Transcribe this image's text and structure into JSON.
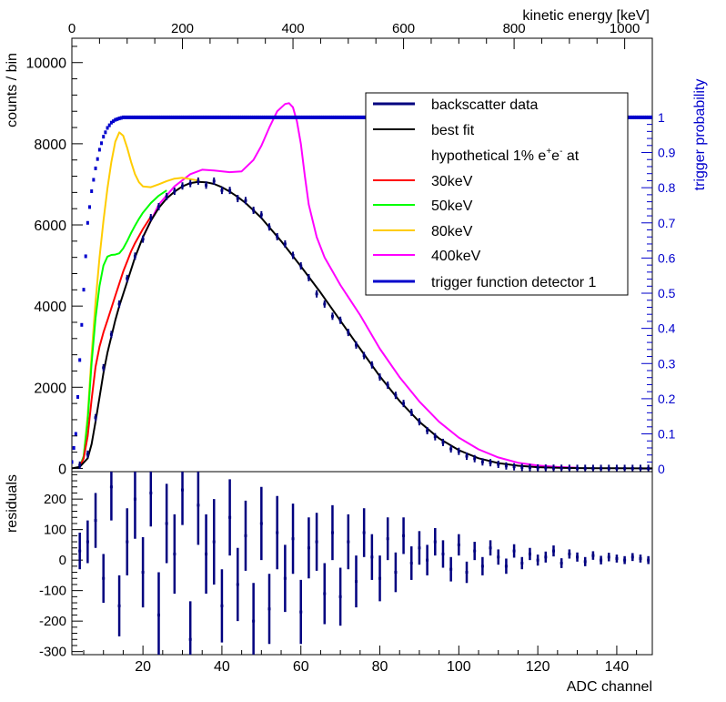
{
  "colors": {
    "data": "#00007f",
    "fit": "#000000",
    "e30": "#ff0000",
    "e50": "#00ff00",
    "e80": "#ffcc00",
    "e400": "#ff00ff",
    "trigger": "#0000cc"
  },
  "chart_data": [
    {
      "type": "scatter",
      "panel": "main",
      "title": "",
      "xlabel": "ADC channel",
      "ylabel": "counts / bin",
      "xlim": [
        2,
        149
      ],
      "ylim": [
        -80,
        10600
      ],
      "yticks": [
        0,
        2000,
        4000,
        6000,
        8000,
        10000
      ],
      "top_axis": {
        "label": "kinetic energy [keV]",
        "range": [
          0,
          1050
        ],
        "ticks": [
          0,
          200,
          400,
          600,
          800,
          1000
        ]
      },
      "right_axis": {
        "label": "trigger probability",
        "range": [
          -0.0074,
          1.225
        ],
        "ticks": [
          0,
          0.1,
          0.2,
          0.3,
          0.4,
          0.5,
          0.6,
          0.7,
          0.8,
          0.9,
          1
        ]
      },
      "legend": {
        "placement": "top-right",
        "entries": [
          "backscatter data",
          "best fit",
          "hypothetical 1% e+e- at",
          "30keV",
          "50keV",
          "80keV",
          "400keV",
          "trigger function detector 1"
        ],
        "subtitle_base": "hypothetical 1% e",
        "subtitle_sup1": "+",
        "subtitle_mid": "e",
        "subtitle_sup2": "-",
        "subtitle_end": " at"
      },
      "series": [
        {
          "name": "best fit",
          "x": [
            2,
            4,
            6,
            7,
            8,
            9,
            10,
            11,
            12,
            13,
            14,
            16,
            18,
            20,
            22,
            24,
            26,
            28,
            30,
            32,
            34,
            36,
            38,
            40,
            42,
            44,
            46,
            48,
            50,
            55,
            60,
            65,
            70,
            75,
            80,
            85,
            90,
            95,
            100,
            105,
            110,
            115,
            120,
            125,
            130,
            135,
            140,
            145,
            149
          ],
          "y": [
            0,
            40,
            250,
            600,
            1150,
            1750,
            2350,
            2850,
            3250,
            3650,
            4000,
            4600,
            5200,
            5700,
            6100,
            6420,
            6650,
            6820,
            6950,
            7030,
            7060,
            7050,
            7010,
            6930,
            6820,
            6690,
            6540,
            6360,
            6170,
            5600,
            4980,
            4330,
            3640,
            2950,
            2270,
            1660,
            1150,
            740,
            450,
            250,
            130,
            65,
            30,
            15,
            8,
            4,
            2,
            1,
            0
          ]
        },
        {
          "name": "30keV",
          "x": [
            4,
            5,
            6,
            7,
            8,
            9,
            10,
            11,
            12,
            13,
            14,
            15,
            16,
            17,
            18,
            20,
            22
          ],
          "y": [
            40,
            250,
            800,
            1700,
            2500,
            3000,
            3350,
            3650,
            3950,
            4250,
            4550,
            4850,
            5100,
            5350,
            5550,
            5900,
            6200
          ]
        },
        {
          "name": "50keV",
          "x": [
            4,
            5,
            6,
            7,
            8,
            9,
            10,
            11,
            12,
            13,
            14,
            15,
            16,
            17,
            18,
            19,
            20,
            22,
            24,
            26
          ],
          "y": [
            40,
            300,
            1200,
            2600,
            3700,
            4500,
            5000,
            5220,
            5260,
            5270,
            5300,
            5420,
            5600,
            5800,
            5980,
            6150,
            6300,
            6540,
            6720,
            6850
          ]
        },
        {
          "name": "80keV",
          "x": [
            4,
            5,
            6,
            7,
            8,
            9,
            10,
            11,
            12,
            13,
            14,
            15,
            16,
            17,
            18,
            19,
            20,
            22,
            24,
            26,
            28,
            30,
            32,
            34
          ],
          "y": [
            40,
            300,
            1300,
            2800,
            4100,
            5200,
            6100,
            6900,
            7550,
            8050,
            8280,
            8200,
            7900,
            7550,
            7250,
            7050,
            6950,
            6930,
            7000,
            7080,
            7140,
            7160,
            7130,
            7090
          ]
        },
        {
          "name": "400keV",
          "x": [
            20,
            24,
            28,
            32,
            35,
            38,
            42,
            45,
            48,
            50,
            52,
            54,
            56,
            57,
            58,
            59,
            60,
            61,
            62,
            64,
            66,
            70,
            75,
            80,
            85,
            90,
            95,
            100,
            105,
            110,
            115,
            120,
            125,
            130
          ],
          "y": [
            5700,
            6500,
            6950,
            7250,
            7360,
            7340,
            7300,
            7320,
            7600,
            7950,
            8400,
            8800,
            8980,
            9000,
            8900,
            8550,
            8000,
            7200,
            6500,
            5700,
            5200,
            4520,
            3780,
            2950,
            2250,
            1650,
            1150,
            760,
            470,
            270,
            140,
            70,
            35,
            15
          ]
        },
        {
          "name": "trigger function detector 1",
          "axis": "right",
          "x": [
            2,
            3,
            4,
            5,
            6,
            7,
            8,
            9,
            10,
            11,
            12,
            13,
            14,
            15,
            20,
            30,
            40,
            60,
            80,
            100,
            120,
            140,
            149
          ],
          "y": [
            0.02,
            0.1,
            0.31,
            0.51,
            0.7,
            0.79,
            0.855,
            0.908,
            0.945,
            0.97,
            0.985,
            0.993,
            0.997,
            1.0,
            1.0,
            1.0,
            1.0,
            1.0,
            1.0,
            1.0,
            1.0,
            1.0,
            1.0
          ]
        }
      ],
      "backscatter_data": {
        "x": [
          4,
          6,
          8,
          10,
          12,
          14,
          16,
          18,
          20,
          22,
          24,
          26,
          28,
          30,
          32,
          34,
          36,
          38,
          40,
          42,
          44,
          46,
          48,
          50,
          52,
          54,
          56,
          58,
          60,
          62,
          64,
          66,
          68,
          70,
          72,
          74,
          76,
          78,
          80,
          82,
          84,
          86,
          88,
          90,
          92,
          94,
          96,
          98,
          100,
          102,
          104,
          106,
          108,
          110,
          112,
          114,
          116,
          118,
          120,
          122,
          124,
          126,
          128,
          130,
          132,
          134,
          136,
          138,
          140,
          142,
          144,
          146,
          148
        ],
        "y": [
          80,
          350,
          1250,
          2480,
          3300,
          4050,
          4680,
          5230,
          5650,
          6180,
          6450,
          6700,
          6830,
          6960,
          7020,
          7080,
          6980,
          7080,
          6850,
          6850,
          6650,
          6600,
          6360,
          6250,
          5950,
          5710,
          5530,
          5250,
          4990,
          4700,
          4300,
          4050,
          3750,
          3650,
          3350,
          3040,
          2780,
          2550,
          2250,
          2050,
          1800,
          1600,
          1380,
          1150,
          930,
          780,
          640,
          480,
          420,
          300,
          240,
          160,
          140,
          100,
          60,
          40,
          25,
          20,
          10,
          8,
          5,
          3,
          2,
          1,
          1,
          0,
          0,
          0,
          0,
          0,
          0,
          0,
          0
        ]
      }
    },
    {
      "type": "scatter",
      "panel": "residuals",
      "xlabel": "ADC channel",
      "ylabel": "residuals",
      "xlim": [
        2,
        149
      ],
      "ylim": [
        -310,
        290
      ],
      "xticks": [
        20,
        40,
        60,
        80,
        100,
        120,
        140
      ],
      "yticks": [
        -300,
        -200,
        -100,
        0,
        100,
        200
      ],
      "x": [
        4,
        6,
        8,
        10,
        12,
        14,
        16,
        18,
        20,
        22,
        24,
        26,
        28,
        30,
        32,
        34,
        36,
        38,
        40,
        42,
        44,
        46,
        48,
        50,
        52,
        54,
        56,
        58,
        60,
        62,
        64,
        66,
        68,
        70,
        72,
        74,
        76,
        78,
        80,
        82,
        84,
        86,
        88,
        90,
        92,
        94,
        96,
        98,
        100,
        102,
        104,
        106,
        108,
        110,
        112,
        114,
        116,
        118,
        120,
        122,
        124,
        126,
        128,
        130,
        132,
        134,
        136,
        138,
        140,
        142,
        144,
        146,
        148
      ],
      "y": [
        30,
        60,
        130,
        -60,
        240,
        -150,
        60,
        200,
        -40,
        220,
        -180,
        120,
        20,
        230,
        -260,
        180,
        20,
        60,
        -150,
        140,
        -80,
        80,
        -200,
        120,
        -160,
        90,
        -60,
        70,
        -170,
        40,
        60,
        -110,
        90,
        -120,
        60,
        -70,
        90,
        10,
        -60,
        70,
        -40,
        80,
        -10,
        40,
        0,
        60,
        20,
        -30,
        50,
        -40,
        30,
        -20,
        40,
        10,
        -20,
        30,
        -10,
        20,
        0,
        10,
        30,
        -10,
        20,
        10,
        -5,
        15,
        0,
        10,
        5,
        0,
        10,
        5,
        0
      ],
      "errors": [
        60,
        70,
        90,
        80,
        110,
        100,
        110,
        130,
        115,
        110,
        140,
        130,
        130,
        115,
        125,
        130,
        130,
        140,
        120,
        125,
        120,
        115,
        125,
        120,
        115,
        120,
        110,
        115,
        105,
        100,
        95,
        100,
        90,
        95,
        90,
        85,
        80,
        75,
        75,
        70,
        65,
        60,
        55,
        55,
        50,
        45,
        45,
        40,
        35,
        35,
        30,
        30,
        25,
        25,
        25,
        22,
        20,
        20,
        18,
        18,
        18,
        16,
        15,
        15,
        15,
        14,
        14,
        14,
        13,
        13,
        13,
        13,
        13
      ]
    }
  ]
}
